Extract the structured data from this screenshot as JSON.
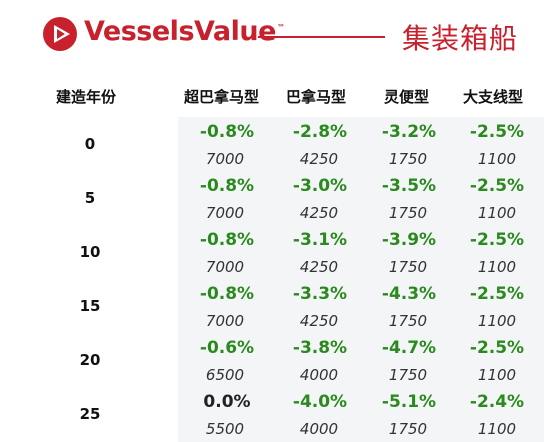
{
  "header": {
    "brand": "VesselsValue",
    "trademark": "™",
    "category": "集装箱船",
    "brand_color": "#c8202c",
    "logo_icon": "vesselsvalue-triangle-logo"
  },
  "columns": {
    "age": "建造年份",
    "super_panamax": "超巴拿马型",
    "panamax": "巴拿马型",
    "feeder": "灵便型",
    "handysize": "大支线型"
  },
  "rows": [
    {
      "age": "0",
      "pct": [
        "-0.8%",
        "-2.8%",
        "-3.2%",
        "-2.5%"
      ],
      "val": [
        "7000",
        "4250",
        "1750",
        "1100"
      ]
    },
    {
      "age": "5",
      "pct": [
        "-0.8%",
        "-3.0%",
        "-3.5%",
        "-2.5%"
      ],
      "val": [
        "7000",
        "4250",
        "1750",
        "1100"
      ]
    },
    {
      "age": "10",
      "pct": [
        "-0.8%",
        "-3.1%",
        "-3.9%",
        "-2.5%"
      ],
      "val": [
        "7000",
        "4250",
        "1750",
        "1100"
      ]
    },
    {
      "age": "15",
      "pct": [
        "-0.8%",
        "-3.3%",
        "-4.3%",
        "-2.5%"
      ],
      "val": [
        "7000",
        "4250",
        "1750",
        "1100"
      ]
    },
    {
      "age": "20",
      "pct": [
        "-0.6%",
        "-3.8%",
        "-4.7%",
        "-2.5%"
      ],
      "val": [
        "6500",
        "4000",
        "1750",
        "1100"
      ]
    },
    {
      "age": "25",
      "pct": [
        "0.0%",
        "-4.0%",
        "-5.1%",
        "-2.4%"
      ],
      "val": [
        "5500",
        "4000",
        "1750",
        "1100"
      ]
    }
  ],
  "colors": {
    "negative": "#2a8a1e",
    "neutral": "#222222",
    "cell_bg": "#f3f5f6"
  }
}
